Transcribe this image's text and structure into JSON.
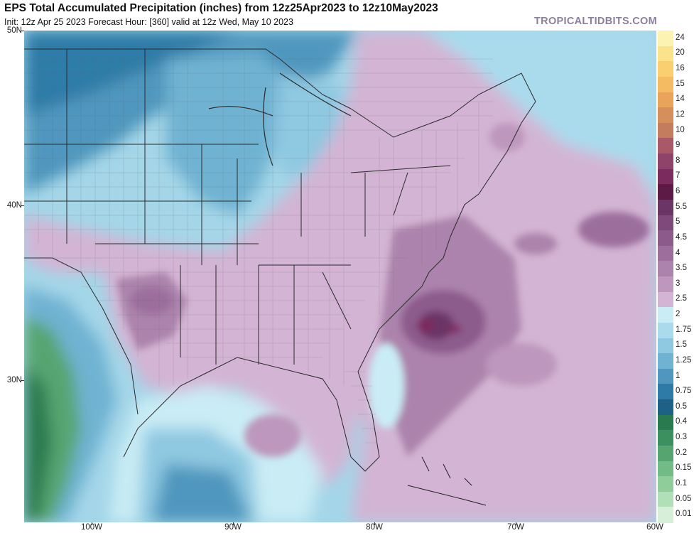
{
  "header": {
    "title": "EPS Total Accumulated Precipitation (inches) from 12z25Apr2023 to 12z10May2023",
    "subtitle": "Init: 12z Apr 25 2023   Forecast Hour: [360]   valid at 12z Wed, May 10 2023",
    "credit": "TROPICALTIDBITS.COM"
  },
  "axes": {
    "lat_labels": [
      "50N",
      "40N",
      "30N"
    ],
    "lon_labels": [
      "100W",
      "90W",
      "80W",
      "70W",
      "60W"
    ]
  },
  "colorbar": {
    "labels": [
      "24",
      "20",
      "16",
      "15",
      "14",
      "12",
      "10",
      "9",
      "8",
      "7",
      "6",
      "5.5",
      "5",
      "4.5",
      "4",
      "3.5",
      "3",
      "2.5",
      "2",
      "1.75",
      "1.5",
      "1.25",
      "1",
      "0.75",
      "0.5",
      "0.4",
      "0.3",
      "0.2",
      "0.15",
      "0.1",
      "0.05",
      "0.01"
    ],
    "colors": [
      "#fdf3b0",
      "#fbe38b",
      "#f9cf6f",
      "#f4bb62",
      "#eaa35b",
      "#d68f5c",
      "#c47c5e",
      "#a85867",
      "#904368",
      "#7c2b5e",
      "#5e1a46",
      "#6a3666",
      "#7d4a7b",
      "#8c5b8c",
      "#9c6e9c",
      "#ac83ac",
      "#bd97bd",
      "#d3b4d4",
      "#c9ecf5",
      "#a9dbed",
      "#8ec8e1",
      "#6fb2d2",
      "#4f97be",
      "#2f7ba8",
      "#1f6087",
      "#2a7a4f",
      "#3c905f",
      "#56a571",
      "#72ba86",
      "#8fcd9b",
      "#b1dfb7",
      "#d6f0d8"
    ]
  }
}
